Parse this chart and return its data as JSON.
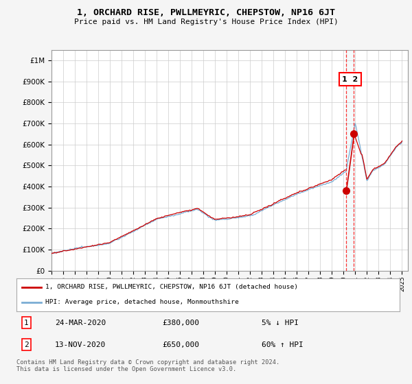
{
  "title": "1, ORCHARD RISE, PWLLMEYRIC, CHEPSTOW, NP16 6JT",
  "subtitle": "Price paid vs. HM Land Registry's House Price Index (HPI)",
  "ytick_vals": [
    0,
    100000,
    200000,
    300000,
    400000,
    500000,
    600000,
    700000,
    800000,
    900000,
    1000000
  ],
  "ylim": [
    0,
    1050000
  ],
  "hpi_color": "#7aadd4",
  "price_color": "#cc0000",
  "marker1_x": 2020.23,
  "marker1_price": 380000,
  "marker1_date": "24-MAR-2020",
  "marker1_pct": "5% ↓ HPI",
  "marker2_x": 2020.87,
  "marker2_price": 650000,
  "marker2_date": "13-NOV-2020",
  "marker2_pct": "60% ↑ HPI",
  "legend_label1": "1, ORCHARD RISE, PWLLMEYRIC, CHEPSTOW, NP16 6JT (detached house)",
  "legend_label2": "HPI: Average price, detached house, Monmouthshire",
  "footnote": "Contains HM Land Registry data © Crown copyright and database right 2024.\nThis data is licensed under the Open Government Licence v3.0.",
  "background_color": "#f5f5f5",
  "plot_bg": "#ffffff",
  "xmin": 1995,
  "xmax": 2025.5
}
